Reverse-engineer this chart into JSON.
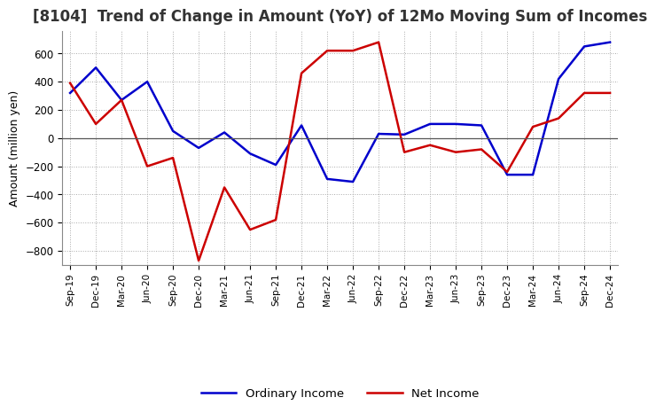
{
  "title": "[8104]  Trend of Change in Amount (YoY) of 12Mo Moving Sum of Incomes",
  "ylabel": "Amount (million yen)",
  "x_labels": [
    "Sep-19",
    "Dec-19",
    "Mar-20",
    "Jun-20",
    "Sep-20",
    "Dec-20",
    "Mar-21",
    "Jun-21",
    "Sep-21",
    "Dec-21",
    "Mar-22",
    "Jun-22",
    "Sep-22",
    "Dec-22",
    "Mar-23",
    "Jun-23",
    "Sep-23",
    "Dec-23",
    "Mar-24",
    "Jun-24",
    "Sep-24",
    "Dec-24"
  ],
  "ordinary_income": [
    320,
    500,
    270,
    400,
    50,
    -70,
    40,
    -110,
    -190,
    90,
    -290,
    -310,
    30,
    25,
    100,
    100,
    90,
    -260,
    -260,
    420,
    650,
    680
  ],
  "net_income": [
    390,
    100,
    270,
    -200,
    -140,
    -870,
    -350,
    -650,
    -580,
    460,
    620,
    620,
    680,
    -100,
    -50,
    -100,
    -80,
    -240,
    80,
    140,
    320,
    320
  ],
  "ordinary_color": "#0000cc",
  "net_color": "#cc0000",
  "ylim": [
    -900,
    760
  ],
  "yticks": [
    -800,
    -600,
    -400,
    -200,
    0,
    200,
    400,
    600
  ],
  "bg_color": "#ffffff",
  "grid_color": "#aaaaaa",
  "title_fontsize": 12,
  "label_fontsize": 9
}
